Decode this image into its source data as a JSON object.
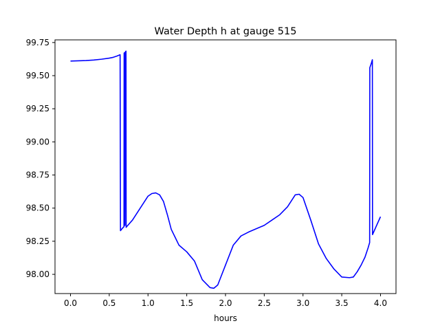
{
  "chart_data": {
    "type": "line",
    "title": "Water Depth h at gauge 515",
    "xlabel": "hours",
    "ylabel": "",
    "xlim": [
      -0.2,
      4.2
    ],
    "ylim": [
      97.855,
      99.77
    ],
    "x_ticks": [
      0.0,
      0.5,
      1.0,
      1.5,
      2.0,
      2.5,
      3.0,
      3.5,
      4.0
    ],
    "x_tick_labels": [
      "0.0",
      "0.5",
      "1.0",
      "1.5",
      "2.0",
      "2.5",
      "3.0",
      "3.5",
      "4.0"
    ],
    "y_ticks": [
      98.0,
      98.25,
      98.5,
      98.75,
      99.0,
      99.25,
      99.5,
      99.75
    ],
    "y_tick_labels": [
      "98.00",
      "98.25",
      "98.50",
      "98.75",
      "99.00",
      "99.25",
      "99.50",
      "99.75"
    ],
    "grid": false,
    "legend": "none",
    "series": [
      {
        "color": "#0000ff",
        "points": [
          [
            0.0,
            99.61
          ],
          [
            0.1,
            99.612
          ],
          [
            0.2,
            99.614
          ],
          [
            0.3,
            99.618
          ],
          [
            0.4,
            99.624
          ],
          [
            0.5,
            99.632
          ],
          [
            0.55,
            99.638
          ],
          [
            0.6,
            99.648
          ],
          [
            0.64,
            99.658
          ],
          [
            0.645,
            98.33
          ],
          [
            0.665,
            98.345
          ],
          [
            0.69,
            98.36
          ],
          [
            0.692,
            99.67
          ],
          [
            0.7,
            99.675
          ],
          [
            0.702,
            98.37
          ],
          [
            0.71,
            99.68
          ],
          [
            0.716,
            99.685
          ],
          [
            0.718,
            98.355
          ],
          [
            0.74,
            98.37
          ],
          [
            0.8,
            98.41
          ],
          [
            0.9,
            98.5
          ],
          [
            1.0,
            98.59
          ],
          [
            1.05,
            98.61
          ],
          [
            1.1,
            98.615
          ],
          [
            1.15,
            98.6
          ],
          [
            1.2,
            98.55
          ],
          [
            1.25,
            98.45
          ],
          [
            1.3,
            98.34
          ],
          [
            1.4,
            98.22
          ],
          [
            1.5,
            98.17
          ],
          [
            1.6,
            98.1
          ],
          [
            1.7,
            97.96
          ],
          [
            1.8,
            97.9
          ],
          [
            1.85,
            97.895
          ],
          [
            1.9,
            97.92
          ],
          [
            2.0,
            98.07
          ],
          [
            2.1,
            98.22
          ],
          [
            2.2,
            98.29
          ],
          [
            2.3,
            98.32
          ],
          [
            2.5,
            98.37
          ],
          [
            2.6,
            98.41
          ],
          [
            2.7,
            98.45
          ],
          [
            2.8,
            98.51
          ],
          [
            2.9,
            98.6
          ],
          [
            2.95,
            98.605
          ],
          [
            3.0,
            98.58
          ],
          [
            3.1,
            98.41
          ],
          [
            3.2,
            98.23
          ],
          [
            3.3,
            98.12
          ],
          [
            3.4,
            98.04
          ],
          [
            3.5,
            97.98
          ],
          [
            3.6,
            97.975
          ],
          [
            3.65,
            97.98
          ],
          [
            3.7,
            98.02
          ],
          [
            3.75,
            98.07
          ],
          [
            3.8,
            98.13
          ],
          [
            3.84,
            98.2
          ],
          [
            3.86,
            98.24
          ],
          [
            3.862,
            99.56
          ],
          [
            3.88,
            99.59
          ],
          [
            3.895,
            99.62
          ],
          [
            3.897,
            98.3
          ],
          [
            3.95,
            98.37
          ],
          [
            4.0,
            98.435
          ]
        ]
      }
    ]
  }
}
